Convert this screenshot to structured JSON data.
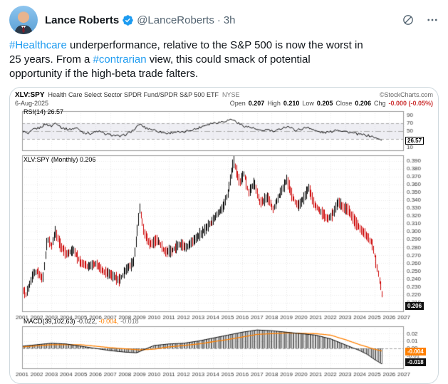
{
  "colors": {
    "accent_blue": "#1d9bf0",
    "text": "#0f1419",
    "muted": "#536471",
    "chart_orange": "#ff8000",
    "chart_red": "#cc0000",
    "card_border": "#cfd9de"
  },
  "tweet": {
    "author": "Lance Roberts",
    "handle": "@LanceRoberts",
    "separator": "·",
    "timestamp": "3h",
    "body_segments": [
      {
        "t": "#Healthcare",
        "h": true
      },
      {
        "t": " underperformance, relative to the S&P 500 is now the worst in\n25 years. From a ",
        "h": false
      },
      {
        "t": "#contrarian",
        "h": true
      },
      {
        "t": " view, this could smack of potential\nopportunity if the high-beta trade falters.",
        "h": false
      }
    ]
  },
  "chart": {
    "title_symbol": "XLV:SPY",
    "title_desc": "Health Care Select Sector SPDR Fund/SPDR S&P 500 ETF",
    "exchange": "NYSE",
    "date": "6-Aug-2025",
    "watermark": "©StockCharts.com",
    "quote": {
      "open_label": "Open",
      "open": "0.207",
      "high_label": "High",
      "high": "0.210",
      "low_label": "Low",
      "low": "0.205",
      "close_label": "Close",
      "close": "0.206",
      "chg_label": "Chg",
      "chg": "-0.000 (-0.05%)"
    },
    "rsi_label": "RSI(14) 26.57",
    "rsi_value_box": "26.57",
    "price_label": "XLV:SPY (Monthly) 0.206",
    "price_value_box": "0.206",
    "macd_label": "MACD(39,102,63)",
    "macd_values": {
      "m1": "-0.022,",
      "m2": "-0.004,",
      "m3": "-0.018"
    },
    "macd_signal_box": "-0.004",
    "macd_hist_box": "-0.018",
    "chart_data": {
      "type": "line",
      "frequency": "monthly",
      "x_range": [
        2001,
        2027
      ],
      "x_end": 2025.583,
      "x_ticks": [
        2001,
        2002,
        2003,
        2004,
        2005,
        2006,
        2007,
        2008,
        2009,
        2010,
        2011,
        2012,
        2013,
        2014,
        2015,
        2016,
        2017,
        2018,
        2019,
        2020,
        2021,
        2022,
        2023,
        2024,
        2025,
        2026,
        2027
      ],
      "panels": [
        {
          "id": "rsi",
          "name": "RSI(14)",
          "type": "line",
          "ylim": [
            0,
            100
          ],
          "yticks": [
            90,
            70,
            50,
            30,
            10
          ],
          "tick_decimals": 0,
          "ref_lines": {
            "dashed": [
              70,
              30
            ],
            "dashdot": [
              50
            ]
          },
          "shaded_band": [
            30,
            70
          ],
          "color": "#000000",
          "last": 26.57,
          "anchors": [
            [
              2001.0,
              52
            ],
            [
              2001.4,
              42
            ],
            [
              2001.8,
              55
            ],
            [
              2002.2,
              58
            ],
            [
              2002.6,
              68
            ],
            [
              2003.0,
              62
            ],
            [
              2003.3,
              72
            ],
            [
              2003.7,
              58
            ],
            [
              2004.2,
              54
            ],
            [
              2004.7,
              58
            ],
            [
              2005.2,
              46
            ],
            [
              2005.7,
              44
            ],
            [
              2006.2,
              50
            ],
            [
              2006.7,
              42
            ],
            [
              2007.2,
              40
            ],
            [
              2007.7,
              36
            ],
            [
              2008.2,
              44
            ],
            [
              2008.7,
              55
            ],
            [
              2009.0,
              68
            ],
            [
              2009.4,
              58
            ],
            [
              2009.9,
              54
            ],
            [
              2010.4,
              48
            ],
            [
              2010.9,
              44
            ],
            [
              2011.4,
              48
            ],
            [
              2011.9,
              46
            ],
            [
              2012.4,
              52
            ],
            [
              2012.9,
              56
            ],
            [
              2013.4,
              64
            ],
            [
              2013.9,
              70
            ],
            [
              2014.4,
              72
            ],
            [
              2014.9,
              76
            ],
            [
              2015.3,
              80
            ],
            [
              2015.8,
              68
            ],
            [
              2016.2,
              62
            ],
            [
              2016.7,
              58
            ],
            [
              2017.2,
              50
            ],
            [
              2017.7,
              54
            ],
            [
              2018.2,
              48
            ],
            [
              2018.7,
              58
            ],
            [
              2019.1,
              62
            ],
            [
              2019.6,
              52
            ],
            [
              2020.1,
              56
            ],
            [
              2020.5,
              60
            ],
            [
              2021.0,
              50
            ],
            [
              2021.5,
              46
            ],
            [
              2022.0,
              48
            ],
            [
              2022.4,
              54
            ],
            [
              2022.9,
              50
            ],
            [
              2023.4,
              46
            ],
            [
              2023.9,
              42
            ],
            [
              2024.4,
              40
            ],
            [
              2024.9,
              36
            ],
            [
              2025.2,
              31
            ],
            [
              2025.583,
              26.57
            ]
          ]
        },
        {
          "id": "price",
          "name": "XLV:SPY (Monthly)",
          "type": "hl_bars",
          "ylim": [
            0.198,
            0.397
          ],
          "yticks": [
            0.39,
            0.38,
            0.37,
            0.36,
            0.35,
            0.34,
            0.33,
            0.32,
            0.31,
            0.3,
            0.29,
            0.28,
            0.27,
            0.26,
            0.25,
            0.24,
            0.23,
            0.22,
            0.21
          ],
          "tick_decimals": 3,
          "up_color": "#000000",
          "down_color": "#cc0000",
          "last": 0.206,
          "anchors": [
            [
              2001.0,
              0.228
            ],
            [
              2001.25,
              0.22
            ],
            [
              2001.75,
              0.246
            ],
            [
              2002.0,
              0.25
            ],
            [
              2002.4,
              0.24
            ],
            [
              2002.7,
              0.29
            ],
            [
              2003.0,
              0.282
            ],
            [
              2003.25,
              0.3
            ],
            [
              2003.6,
              0.282
            ],
            [
              2004.0,
              0.272
            ],
            [
              2004.5,
              0.276
            ],
            [
              2005.0,
              0.26
            ],
            [
              2005.5,
              0.256
            ],
            [
              2006.0,
              0.26
            ],
            [
              2006.5,
              0.25
            ],
            [
              2007.0,
              0.246
            ],
            [
              2007.6,
              0.238
            ],
            [
              2008.0,
              0.25
            ],
            [
              2008.6,
              0.262
            ],
            [
              2009.0,
              0.33
            ],
            [
              2009.3,
              0.298
            ],
            [
              2009.7,
              0.284
            ],
            [
              2010.2,
              0.29
            ],
            [
              2010.7,
              0.274
            ],
            [
              2011.2,
              0.276
            ],
            [
              2011.7,
              0.284
            ],
            [
              2012.2,
              0.28
            ],
            [
              2012.7,
              0.29
            ],
            [
              2013.2,
              0.298
            ],
            [
              2013.7,
              0.308
            ],
            [
              2014.2,
              0.32
            ],
            [
              2014.7,
              0.332
            ],
            [
              2015.0,
              0.348
            ],
            [
              2015.4,
              0.39
            ],
            [
              2015.8,
              0.362
            ],
            [
              2016.1,
              0.374
            ],
            [
              2016.4,
              0.35
            ],
            [
              2016.8,
              0.362
            ],
            [
              2017.2,
              0.336
            ],
            [
              2017.7,
              0.344
            ],
            [
              2018.1,
              0.328
            ],
            [
              2018.6,
              0.35
            ],
            [
              2019.0,
              0.366
            ],
            [
              2019.4,
              0.344
            ],
            [
              2019.8,
              0.332
            ],
            [
              2020.2,
              0.344
            ],
            [
              2020.5,
              0.356
            ],
            [
              2020.9,
              0.334
            ],
            [
              2021.3,
              0.326
            ],
            [
              2021.8,
              0.316
            ],
            [
              2022.2,
              0.324
            ],
            [
              2022.5,
              0.338
            ],
            [
              2022.9,
              0.33
            ],
            [
              2023.2,
              0.328
            ],
            [
              2023.6,
              0.314
            ],
            [
              2024.0,
              0.304
            ],
            [
              2024.4,
              0.296
            ],
            [
              2024.8,
              0.286
            ],
            [
              2025.0,
              0.27
            ],
            [
              2025.25,
              0.246
            ],
            [
              2025.45,
              0.228
            ],
            [
              2025.583,
              0.207
            ]
          ]
        },
        {
          "id": "macd",
          "name": "MACD(39,102,63)",
          "type": "macd",
          "ylim": [
            -0.028,
            0.03
          ],
          "yticks": [
            0.02,
            0.01,
            0.0,
            -0.01,
            -0.02
          ],
          "tick_decimals": 2,
          "macd_color": "#000000",
          "signal_color": "#ff8000",
          "hist_color": "#666666",
          "last_macd": -0.022,
          "last_signal": -0.004,
          "last_hist": -0.018,
          "macd_anchors": [
            [
              2001.0,
              0.003
            ],
            [
              2002.0,
              0.005
            ],
            [
              2003.0,
              0.007
            ],
            [
              2004.0,
              0.006
            ],
            [
              2005.0,
              0.003
            ],
            [
              2006.0,
              0.0
            ],
            [
              2007.0,
              -0.003
            ],
            [
              2008.0,
              -0.005
            ],
            [
              2008.8,
              -0.006
            ],
            [
              2009.5,
              0.0
            ],
            [
              2010.0,
              0.004
            ],
            [
              2011.0,
              0.006
            ],
            [
              2012.0,
              0.007
            ],
            [
              2013.0,
              0.01
            ],
            [
              2014.0,
              0.014
            ],
            [
              2015.0,
              0.018
            ],
            [
              2016.0,
              0.022
            ],
            [
              2017.0,
              0.025
            ],
            [
              2018.0,
              0.024
            ],
            [
              2019.0,
              0.022
            ],
            [
              2020.0,
              0.02
            ],
            [
              2021.0,
              0.018
            ],
            [
              2022.0,
              0.013
            ],
            [
              2023.0,
              0.005
            ],
            [
              2023.5,
              0.001
            ],
            [
              2024.0,
              -0.003
            ],
            [
              2024.5,
              -0.008
            ],
            [
              2025.0,
              -0.015
            ],
            [
              2025.583,
              -0.022
            ]
          ],
          "signal_anchors": [
            [
              2001.0,
              0.002
            ],
            [
              2003.0,
              0.005
            ],
            [
              2005.0,
              0.005
            ],
            [
              2007.0,
              0.001
            ],
            [
              2009.0,
              -0.002
            ],
            [
              2010.0,
              -0.001
            ],
            [
              2011.0,
              0.002
            ],
            [
              2013.0,
              0.006
            ],
            [
              2015.0,
              0.012
            ],
            [
              2017.0,
              0.019
            ],
            [
              2019.0,
              0.021
            ],
            [
              2021.0,
              0.02
            ],
            [
              2022.0,
              0.018
            ],
            [
              2023.0,
              0.012
            ],
            [
              2024.0,
              0.005
            ],
            [
              2025.0,
              -0.001
            ],
            [
              2025.583,
              -0.004
            ]
          ]
        }
      ]
    }
  }
}
